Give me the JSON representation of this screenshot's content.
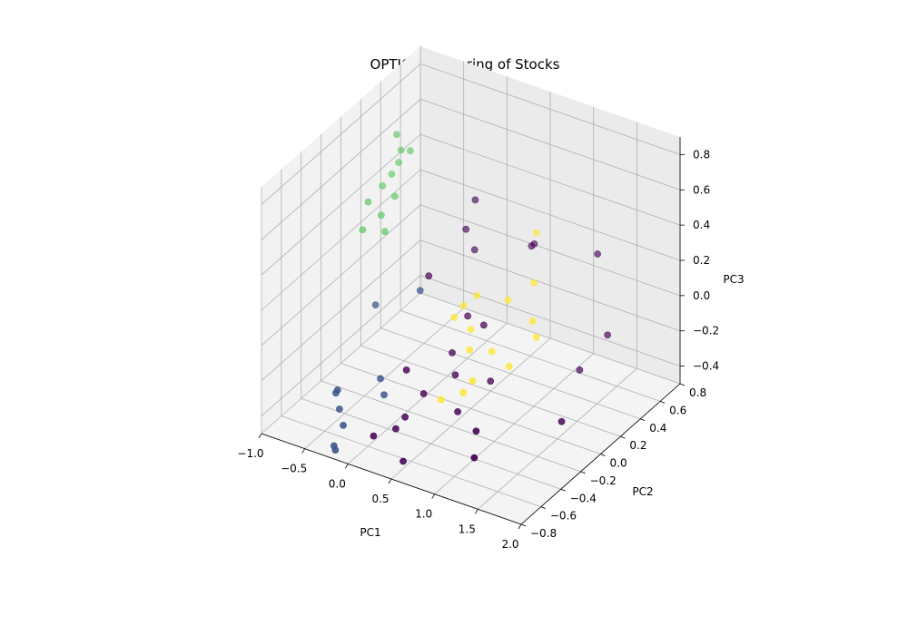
{
  "chart_data": {
    "type": "scatter",
    "projection": "3d",
    "title": "OPTICS Clustering of Stocks",
    "xlabel": "PC1",
    "ylabel": "PC2",
    "zlabel": "PC3",
    "xlim": [
      -1.0,
      2.0
    ],
    "ylim": [
      -0.8,
      0.8
    ],
    "zlim": [
      -0.5,
      0.9
    ],
    "xticks": [
      "−1.0",
      "−0.5",
      "0.0",
      "0.5",
      "1.0",
      "1.5",
      "2.0"
    ],
    "yticks": [
      "−0.8",
      "−0.6",
      "−0.4",
      "−0.2",
      "0.0",
      "0.2",
      "0.4",
      "0.6",
      "0.8"
    ],
    "zticks": [
      "−0.4",
      "−0.2",
      "0.0",
      "0.2",
      "0.4",
      "0.6",
      "0.8"
    ],
    "grid": true,
    "colormap": "viridis",
    "cluster_colors": {
      "-1": "#440154",
      "0": "#3b528b",
      "1": "#5ec962",
      "2": "#fde725"
    },
    "points": [
      {
        "pc1": 1.62,
        "pc2": 0.3,
        "pc3": 0.42,
        "cluster": -1
      },
      {
        "pc1": 1.95,
        "pc2": -0.35,
        "pc3": -0.15,
        "cluster": -1
      },
      {
        "pc1": 0.8,
        "pc2": 0.35,
        "pc3": 0.3,
        "cluster": -1
      },
      {
        "pc1": 0.82,
        "pc2": 0.36,
        "pc3": 0.31,
        "cluster": -1
      },
      {
        "pc1": 1.7,
        "pc2": 0.05,
        "pc3": -0.1,
        "cluster": -1
      },
      {
        "pc1": 1.85,
        "pc2": 0.2,
        "pc3": 0.05,
        "cluster": -1
      },
      {
        "pc1": 1.25,
        "pc2": -0.6,
        "pc3": -0.2,
        "cluster": -1
      },
      {
        "pc1": 1.4,
        "pc2": -0.75,
        "pc3": -0.25,
        "cluster": -1
      },
      {
        "pc1": -0.1,
        "pc2": 0.1,
        "pc3": 0.1,
        "cluster": -1
      },
      {
        "pc1": 0.1,
        "pc2": 0.3,
        "pc3": 0.3,
        "cluster": -1
      },
      {
        "pc1": 0.15,
        "pc2": 0.35,
        "pc3": 0.45,
        "cluster": -1
      },
      {
        "pc1": 0.2,
        "pc2": 0.3,
        "pc3": 0.2,
        "cluster": -1
      },
      {
        "pc1": 0.35,
        "pc2": 0.1,
        "pc3": -0.05,
        "cluster": -1
      },
      {
        "pc1": 0.65,
        "pc2": 0.0,
        "pc3": 0.0,
        "cluster": -1
      },
      {
        "pc1": 0.4,
        "pc2": -0.1,
        "pc3": -0.15,
        "cluster": -1
      },
      {
        "pc1": 0.55,
        "pc2": -0.2,
        "pc3": -0.2,
        "cluster": -1
      },
      {
        "pc1": 0.9,
        "pc2": -0.15,
        "pc3": -0.2,
        "cluster": -1
      },
      {
        "pc1": 0.75,
        "pc2": -0.35,
        "pc3": -0.3,
        "cluster": -1
      },
      {
        "pc1": 0.3,
        "pc2": -0.3,
        "pc3": -0.3,
        "cluster": -1
      },
      {
        "pc1": 0.2,
        "pc2": -0.4,
        "pc3": -0.4,
        "cluster": -1
      },
      {
        "pc1": 0.15,
        "pc2": -0.45,
        "pc3": -0.45,
        "cluster": -1
      },
      {
        "pc1": -0.05,
        "pc2": -0.5,
        "pc3": -0.5,
        "cluster": -1
      },
      {
        "pc1": 0.35,
        "pc2": -0.55,
        "pc3": -0.55,
        "cluster": -1
      },
      {
        "pc1": 0.1,
        "pc2": -0.3,
        "pc3": -0.2,
        "cluster": -1
      },
      {
        "pc1": -0.6,
        "pc2": 0.0,
        "pc3": -0.1,
        "cluster": 0
      },
      {
        "pc1": -0.2,
        "pc2": 0.1,
        "pc3": 0.0,
        "cluster": 0
      },
      {
        "pc1": -0.6,
        "pc2": -0.4,
        "pc3": -0.4,
        "cluster": 0
      },
      {
        "pc1": -0.58,
        "pc2": -0.4,
        "pc3": -0.38,
        "cluster": 0
      },
      {
        "pc1": -0.5,
        "pc2": -0.45,
        "pc3": -0.45,
        "cluster": 0
      },
      {
        "pc1": -0.4,
        "pc2": -0.5,
        "pc3": -0.5,
        "cluster": 0
      },
      {
        "pc1": -0.45,
        "pc2": -0.55,
        "pc3": -0.6,
        "cluster": 0
      },
      {
        "pc1": -0.4,
        "pc2": -0.58,
        "pc3": -0.6,
        "cluster": 0
      },
      {
        "pc1": -0.2,
        "pc2": -0.3,
        "pc3": -0.3,
        "cluster": 0
      },
      {
        "pc1": -0.1,
        "pc2": -0.35,
        "pc3": -0.35,
        "cluster": 0
      },
      {
        "pc1": -0.7,
        "pc2": 0.3,
        "pc3": 0.7,
        "cluster": 1
      },
      {
        "pc1": -0.6,
        "pc2": 0.35,
        "pc3": 0.6,
        "cluster": 1
      },
      {
        "pc1": -0.65,
        "pc2": 0.3,
        "pc3": 0.62,
        "cluster": 1
      },
      {
        "pc1": -0.62,
        "pc2": 0.25,
        "pc3": 0.58,
        "cluster": 1
      },
      {
        "pc1": -0.75,
        "pc2": 0.2,
        "pc3": 0.45,
        "cluster": 1
      },
      {
        "pc1": -0.7,
        "pc2": 0.25,
        "pc3": 0.5,
        "cluster": 1
      },
      {
        "pc1": -0.55,
        "pc2": 0.15,
        "pc3": 0.45,
        "cluster": 1
      },
      {
        "pc1": -0.8,
        "pc2": 0.1,
        "pc3": 0.4,
        "cluster": 1
      },
      {
        "pc1": -0.65,
        "pc2": 0.1,
        "pc3": 0.35,
        "cluster": 1
      },
      {
        "pc1": -0.55,
        "pc2": 0.05,
        "pc3": 0.3,
        "cluster": 1
      },
      {
        "pc1": -0.75,
        "pc2": 0.0,
        "pc3": 0.3,
        "cluster": 1
      },
      {
        "pc1": 0.8,
        "pc2": 0.4,
        "pc3": 0.35,
        "cluster": 2
      },
      {
        "pc1": 1.0,
        "pc2": 0.2,
        "pc3": 0.2,
        "cluster": 2
      },
      {
        "pc1": 1.1,
        "pc2": 0.1,
        "pc3": 0.05,
        "cluster": 2
      },
      {
        "pc1": 1.2,
        "pc2": 0.05,
        "pc3": 0.0,
        "cluster": 2
      },
      {
        "pc1": 0.7,
        "pc2": 0.2,
        "pc3": 0.05,
        "cluster": 2
      },
      {
        "pc1": 0.4,
        "pc2": 0.15,
        "pc3": 0.05,
        "cluster": 2
      },
      {
        "pc1": 0.3,
        "pc2": 0.1,
        "pc3": 0.0,
        "cluster": 2
      },
      {
        "pc1": 0.25,
        "pc2": 0.05,
        "pc3": -0.05,
        "cluster": 2
      },
      {
        "pc1": 0.5,
        "pc2": 0.0,
        "pc3": -0.05,
        "cluster": 2
      },
      {
        "pc1": 0.6,
        "pc2": -0.1,
        "pc3": -0.1,
        "cluster": 2
      },
      {
        "pc1": 0.8,
        "pc2": -0.05,
        "pc3": -0.1,
        "cluster": 2
      },
      {
        "pc1": 1.0,
        "pc2": -0.05,
        "pc3": -0.15,
        "cluster": 2
      },
      {
        "pc1": 0.75,
        "pc2": -0.2,
        "pc3": -0.2,
        "cluster": 2
      },
      {
        "pc1": 0.7,
        "pc2": -0.25,
        "pc3": -0.25,
        "cluster": 2
      },
      {
        "pc1": 0.5,
        "pc2": -0.3,
        "pc3": -0.3,
        "cluster": 2
      }
    ]
  }
}
